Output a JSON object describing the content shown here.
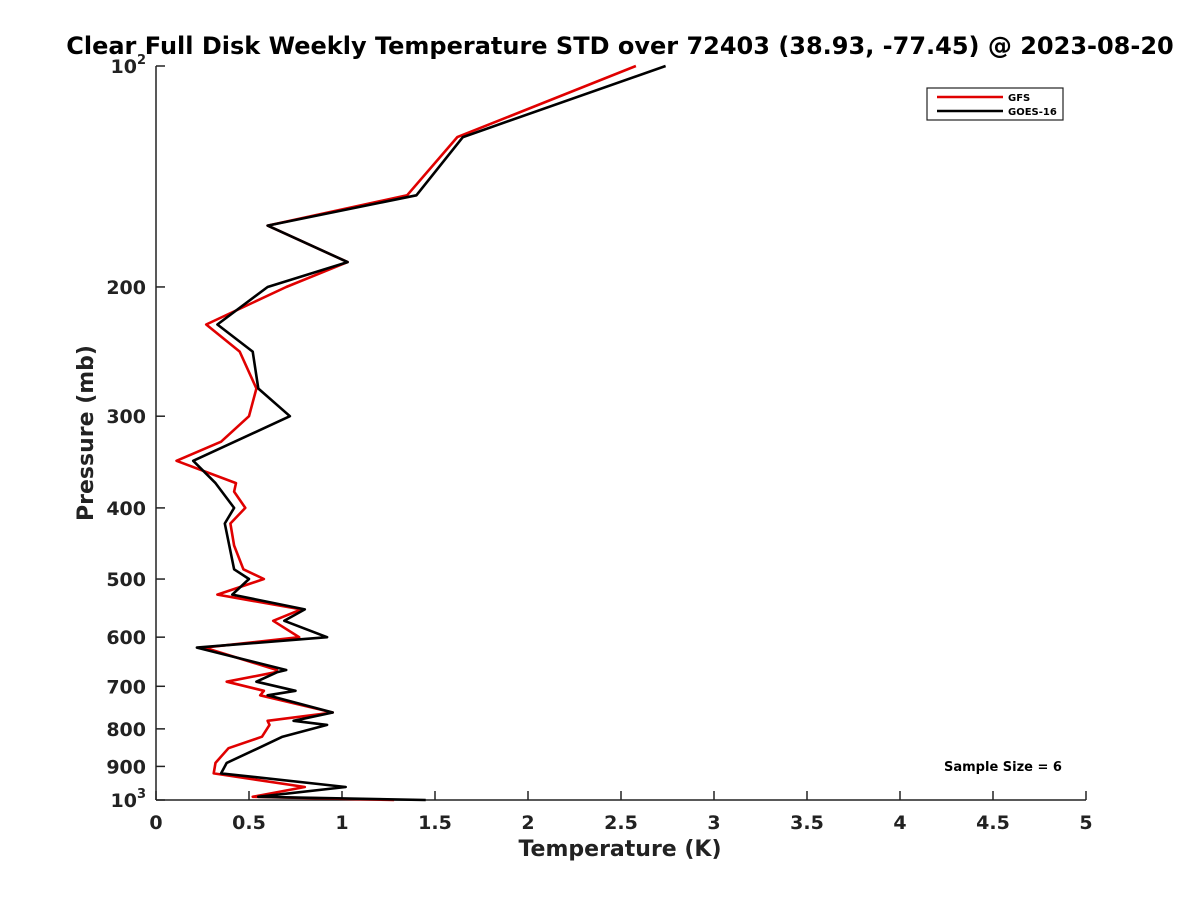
{
  "chart_data": {
    "type": "line",
    "title": "Clear Full Disk Weekly Temperature STD over 72403 (38.93, -77.45) @ 2023-08-20",
    "xlabel": "Temperature (K)",
    "ylabel": "Pressure (mb)",
    "xlim": [
      0,
      5
    ],
    "ylim": [
      1000,
      100
    ],
    "yscale": "log",
    "xticks": [
      0,
      0.5,
      1,
      1.5,
      2,
      2.5,
      3,
      3.5,
      4,
      4.5,
      5
    ],
    "xtick_labels": [
      "0",
      "0.5",
      "1",
      "1.5",
      "2",
      "2.5",
      "3",
      "3.5",
      "4",
      "4.5",
      "5"
    ],
    "yticks": [
      {
        "value": 100,
        "base": "10",
        "exp": "2",
        "label": ""
      },
      {
        "value": 200,
        "label": "200"
      },
      {
        "value": 300,
        "label": "300"
      },
      {
        "value": 400,
        "label": "400"
      },
      {
        "value": 500,
        "label": "500"
      },
      {
        "value": 600,
        "label": "600"
      },
      {
        "value": 700,
        "label": "700"
      },
      {
        "value": 800,
        "label": "800"
      },
      {
        "value": 900,
        "label": "900"
      },
      {
        "value": 1000,
        "base": "10",
        "exp": "3",
        "label": ""
      }
    ],
    "legend_position": "top-right",
    "grid": false,
    "series": [
      {
        "name": "GFS",
        "color": "#e00000",
        "points": [
          [
            2.58,
            100
          ],
          [
            1.62,
            125
          ],
          [
            1.35,
            150
          ],
          [
            0.6,
            165
          ],
          [
            1.03,
            185
          ],
          [
            0.7,
            200
          ],
          [
            0.27,
            225
          ],
          [
            0.45,
            245
          ],
          [
            0.54,
            275
          ],
          [
            0.5,
            300
          ],
          [
            0.35,
            325
          ],
          [
            0.11,
            345
          ],
          [
            0.43,
            370
          ],
          [
            0.42,
            380
          ],
          [
            0.48,
            400
          ],
          [
            0.4,
            420
          ],
          [
            0.42,
            450
          ],
          [
            0.47,
            485
          ],
          [
            0.58,
            500
          ],
          [
            0.33,
            525
          ],
          [
            0.78,
            550
          ],
          [
            0.63,
            570
          ],
          [
            0.77,
            600
          ],
          [
            0.26,
            620
          ],
          [
            0.65,
            665
          ],
          [
            0.64,
            670
          ],
          [
            0.38,
            690
          ],
          [
            0.58,
            710
          ],
          [
            0.56,
            720
          ],
          [
            0.95,
            760
          ],
          [
            0.6,
            780
          ],
          [
            0.61,
            790
          ],
          [
            0.57,
            820
          ],
          [
            0.39,
            850
          ],
          [
            0.32,
            890
          ],
          [
            0.31,
            920
          ],
          [
            0.8,
            960
          ],
          [
            0.52,
            990
          ],
          [
            1.28,
            1000
          ]
        ]
      },
      {
        "name": "GOES-16",
        "color": "#000000",
        "points": [
          [
            2.74,
            100
          ],
          [
            1.65,
            125
          ],
          [
            1.4,
            150
          ],
          [
            0.6,
            165
          ],
          [
            1.03,
            185
          ],
          [
            0.6,
            200
          ],
          [
            0.33,
            225
          ],
          [
            0.52,
            245
          ],
          [
            0.55,
            275
          ],
          [
            0.72,
            300
          ],
          [
            0.2,
            345
          ],
          [
            0.32,
            370
          ],
          [
            0.42,
            400
          ],
          [
            0.37,
            420
          ],
          [
            0.42,
            485
          ],
          [
            0.5,
            500
          ],
          [
            0.41,
            525
          ],
          [
            0.8,
            550
          ],
          [
            0.69,
            570
          ],
          [
            0.92,
            600
          ],
          [
            0.22,
            620
          ],
          [
            0.7,
            665
          ],
          [
            0.65,
            670
          ],
          [
            0.54,
            690
          ],
          [
            0.75,
            710
          ],
          [
            0.6,
            720
          ],
          [
            0.95,
            760
          ],
          [
            0.74,
            780
          ],
          [
            0.92,
            790
          ],
          [
            0.68,
            820
          ],
          [
            0.55,
            850
          ],
          [
            0.38,
            890
          ],
          [
            0.35,
            920
          ],
          [
            1.02,
            960
          ],
          [
            0.55,
            990
          ],
          [
            1.45,
            1000
          ]
        ]
      }
    ],
    "annotation": "Sample Size = 6"
  }
}
